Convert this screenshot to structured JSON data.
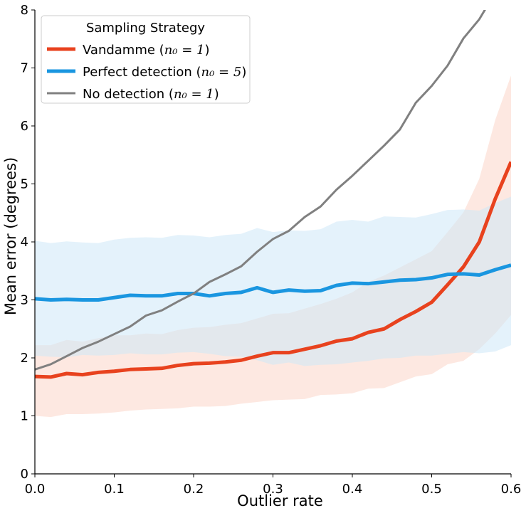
{
  "chart_data": {
    "type": "line",
    "xlabel": "Outlier rate",
    "ylabel": "Mean error (degrees)",
    "xlim": [
      0.0,
      0.6
    ],
    "ylim": [
      0,
      8
    ],
    "xticks": [
      "0.0",
      "0.1",
      "0.2",
      "0.3",
      "0.4",
      "0.5",
      "0.6"
    ],
    "yticks": [
      "0",
      "1",
      "2",
      "3",
      "4",
      "5",
      "6",
      "7",
      "8"
    ],
    "grid": false,
    "legend": {
      "title": "Sampling Strategy",
      "placement": "top-left"
    },
    "x": [
      0.0,
      0.02,
      0.04,
      0.06,
      0.08,
      0.1,
      0.12,
      0.14,
      0.16,
      0.18,
      0.2,
      0.22,
      0.24,
      0.26,
      0.28,
      0.3,
      0.32,
      0.34,
      0.36,
      0.38,
      0.4,
      0.42,
      0.44,
      0.46,
      0.48,
      0.5,
      0.52,
      0.54,
      0.56,
      0.58,
      0.6
    ],
    "series": [
      {
        "name": "Vandamme",
        "name_math": "n₀ = 1",
        "color": "#e8421e",
        "band_color": "#fbd5c8",
        "line_width": 5,
        "values": [
          1.68,
          1.67,
          1.73,
          1.71,
          1.75,
          1.77,
          1.8,
          1.81,
          1.82,
          1.87,
          1.9,
          1.91,
          1.93,
          1.96,
          2.03,
          2.09,
          2.09,
          2.15,
          2.21,
          2.29,
          2.33,
          2.44,
          2.5,
          2.66,
          2.8,
          2.96,
          3.26,
          3.57,
          4.0,
          4.74,
          5.38
        ],
        "lower": [
          1.0,
          0.98,
          1.03,
          1.03,
          1.04,
          1.06,
          1.09,
          1.11,
          1.12,
          1.13,
          1.16,
          1.16,
          1.17,
          1.21,
          1.24,
          1.27,
          1.28,
          1.29,
          1.36,
          1.37,
          1.39,
          1.47,
          1.48,
          1.58,
          1.68,
          1.72,
          1.89,
          1.95,
          2.15,
          2.42,
          2.74
        ],
        "upper": [
          2.22,
          2.22,
          2.31,
          2.28,
          2.34,
          2.39,
          2.39,
          2.42,
          2.41,
          2.48,
          2.52,
          2.53,
          2.57,
          2.6,
          2.68,
          2.76,
          2.77,
          2.85,
          2.93,
          3.02,
          3.13,
          3.31,
          3.42,
          3.56,
          3.7,
          3.84,
          4.17,
          4.51,
          5.09,
          6.1,
          6.87
        ]
      },
      {
        "name": "Perfect detection",
        "name_math": "n₀ = 5",
        "color": "#1a96e0",
        "band_color": "#cde8f8",
        "line_width": 5,
        "values": [
          3.02,
          3.0,
          3.01,
          3.0,
          3.0,
          3.04,
          3.08,
          3.07,
          3.07,
          3.11,
          3.11,
          3.07,
          3.11,
          3.13,
          3.21,
          3.13,
          3.17,
          3.15,
          3.16,
          3.25,
          3.29,
          3.28,
          3.31,
          3.34,
          3.35,
          3.38,
          3.44,
          3.45,
          3.43,
          3.52,
          3.6
        ],
        "lower": [
          2.04,
          2.02,
          2.01,
          2.05,
          2.04,
          2.05,
          2.08,
          2.06,
          2.06,
          2.09,
          2.1,
          2.07,
          2.03,
          2.02,
          1.96,
          1.88,
          1.92,
          1.86,
          1.88,
          1.89,
          1.92,
          1.95,
          1.99,
          2.0,
          2.04,
          2.04,
          2.07,
          2.1,
          2.08,
          2.11,
          2.22
        ],
        "upper": [
          4.02,
          3.98,
          4.01,
          3.99,
          3.98,
          4.04,
          4.07,
          4.08,
          4.07,
          4.12,
          4.11,
          4.08,
          4.12,
          4.14,
          4.24,
          4.17,
          4.2,
          4.19,
          4.22,
          4.35,
          4.38,
          4.35,
          4.44,
          4.43,
          4.42,
          4.48,
          4.55,
          4.56,
          4.54,
          4.67,
          4.78
        ]
      },
      {
        "name": "No detection",
        "name_math": "n₀ = 1",
        "color": "#808080",
        "line_width": 3,
        "values": [
          1.8,
          1.89,
          2.03,
          2.17,
          2.28,
          2.41,
          2.54,
          2.73,
          2.82,
          2.97,
          3.11,
          3.31,
          3.44,
          3.58,
          3.83,
          4.05,
          4.19,
          4.43,
          4.61,
          4.9,
          5.14,
          5.4,
          5.66,
          5.94,
          6.4,
          6.69,
          7.04,
          7.51,
          7.84,
          8.3,
          8.8
        ]
      }
    ]
  }
}
